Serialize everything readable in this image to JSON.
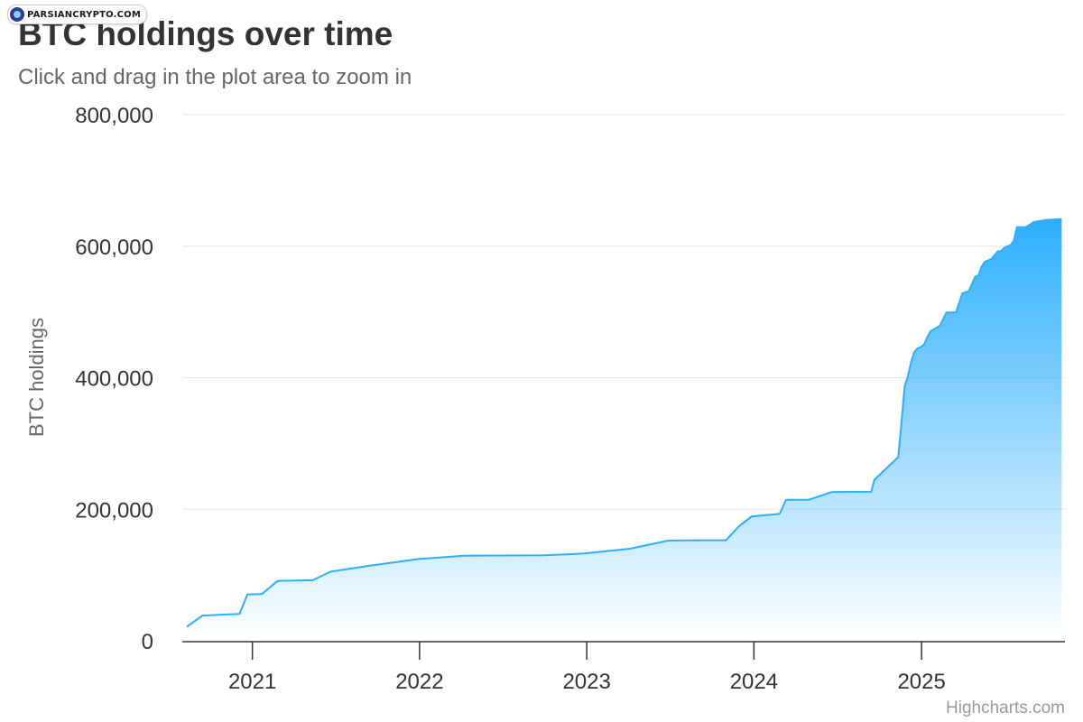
{
  "watermark": {
    "text": "PARSIANCRYPTO.COM",
    "icon": "parsiancrypto-logo-icon"
  },
  "credits": "Highcharts.com",
  "colors": {
    "line": "#2caffe",
    "fill_top": "#2caffe",
    "title": "#333333",
    "subtitle": "#666666",
    "axis_label": "#333333",
    "grid": "#e6e6e6",
    "axis_line": "#333333"
  },
  "chart_data": {
    "type": "area",
    "title": "BTC holdings over time",
    "subtitle": "Click and drag in the plot area to zoom in",
    "xlabel": "",
    "ylabel": "BTC holdings",
    "ylim": [
      0,
      800000
    ],
    "yticks": [
      0,
      200000,
      400000,
      600000,
      800000
    ],
    "ytick_labels": [
      "0",
      "200,000",
      "400,000",
      "600,000",
      "800,000"
    ],
    "xlim": [
      "2020-08-01",
      "2025-11-10"
    ],
    "xticks": [
      "2021-01-01",
      "2022-01-01",
      "2023-01-01",
      "2024-01-01",
      "2025-01-01"
    ],
    "xtick_labels": [
      "2021",
      "2022",
      "2023",
      "2024",
      "2025"
    ],
    "grid": true,
    "legend": "none",
    "series": [
      {
        "x": [
          "2020-08-11",
          "2020-09-14",
          "2020-12-04",
          "2020-12-21",
          "2021-01-22",
          "2021-02-24",
          "2021-03-01",
          "2021-05-13",
          "2021-06-21",
          "2021-09-13",
          "2021-12-30",
          "2022-04-05",
          "2022-09-30",
          "2022-12-24",
          "2023-04-05",
          "2023-06-28",
          "2023-09-24",
          "2023-11-01",
          "2023-11-30",
          "2023-12-27",
          "2024-02-26",
          "2024-03-11",
          "2024-03-19",
          "2024-04-29",
          "2024-06-20",
          "2024-09-13",
          "2024-09-20",
          "2024-11-11",
          "2024-11-18",
          "2024-11-25",
          "2024-12-02",
          "2024-12-09",
          "2024-12-16",
          "2024-12-23",
          "2024-12-30",
          "2025-01-06",
          "2025-01-13",
          "2025-01-21",
          "2025-02-10",
          "2025-02-24",
          "2025-03-17",
          "2025-03-31",
          "2025-04-14",
          "2025-04-28",
          "2025-05-05",
          "2025-05-12",
          "2025-05-19",
          "2025-06-02",
          "2025-06-16",
          "2025-06-23",
          "2025-06-30",
          "2025-07-14",
          "2025-07-21",
          "2025-07-28",
          "2025-08-11",
          "2025-08-18",
          "2025-09-02",
          "2025-10-01",
          "2025-11-03"
        ],
        "values": [
          21454,
          38250,
          40824,
          70470,
          71079,
          90531,
          91064,
          92079,
          105085,
          114042,
          124391,
          129218,
          130000,
          132500,
          140000,
          152333,
          152800,
          152800,
          174530,
          189150,
          193000,
          214246,
          214400,
          214400,
          226331,
          226500,
          244800,
          279420,
          331200,
          386700,
          402100,
          423650,
          439000,
          444262,
          446400,
          450000,
          461000,
          471107,
          478740,
          499096,
          499226,
          528185,
          531644,
          553555,
          555450,
          568840,
          576230,
          580250,
          592100,
          592345,
          597325,
          601550,
          607770,
          628791,
          628946,
          629376,
          636505,
          640031,
          641205
        ]
      }
    ]
  }
}
